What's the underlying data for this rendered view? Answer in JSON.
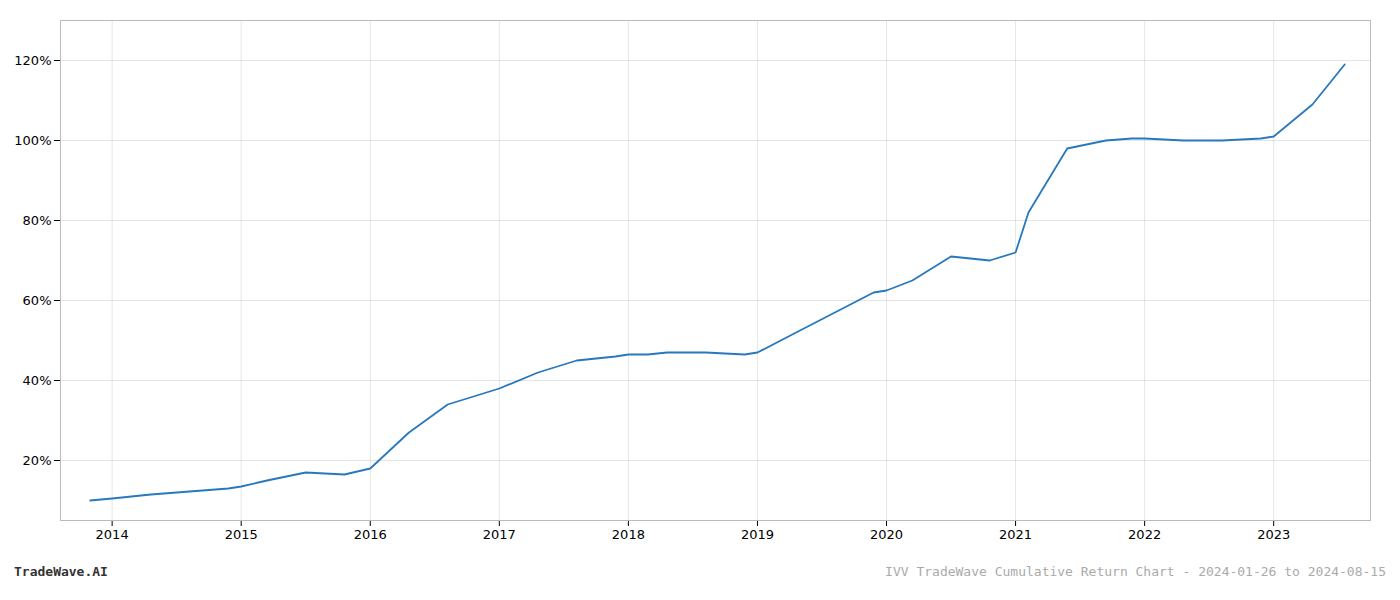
{
  "chart_data": {
    "type": "line",
    "annotations": [
      "TradeWave.AI",
      "IVV TradeWave Cumulative Return Chart - 2024-01-26 to 2024-08-15"
    ],
    "x": [
      2013.83,
      2014.0,
      2014.15,
      2014.3,
      2014.5,
      2014.7,
      2014.9,
      2015.0,
      2015.2,
      2015.5,
      2015.8,
      2016.0,
      2016.3,
      2016.6,
      2016.9,
      2017.0,
      2017.3,
      2017.6,
      2017.9,
      2018.0,
      2018.15,
      2018.3,
      2018.6,
      2018.9,
      2019.0,
      2019.3,
      2019.6,
      2019.9,
      2020.0,
      2020.2,
      2020.5,
      2020.8,
      2021.0,
      2021.1,
      2021.4,
      2021.7,
      2021.9,
      2022.0,
      2022.3,
      2022.6,
      2022.9,
      2023.0,
      2023.3,
      2023.55
    ],
    "values": [
      10,
      10.5,
      11,
      11.5,
      12,
      12.5,
      13,
      13.5,
      15,
      17,
      16.5,
      18,
      27,
      34,
      37,
      38,
      42,
      45,
      46,
      46.5,
      46.5,
      47,
      47,
      46.5,
      47,
      52,
      57,
      62,
      62.5,
      65,
      71,
      70,
      72,
      82,
      98,
      100,
      100.5,
      100.5,
      100,
      100,
      100.5,
      101,
      109,
      119
    ],
    "color": "#2878be",
    "xlim": [
      2013.6,
      2023.75
    ],
    "xticks": [
      2014,
      2015,
      2016,
      2017,
      2018,
      2019,
      2020,
      2021,
      2022,
      2023
    ],
    "ylim": [
      5,
      130
    ],
    "yticks": [
      {
        "value": 20,
        "label": "20%"
      },
      {
        "value": 40,
        "label": "40%"
      },
      {
        "value": 60,
        "label": "60%"
      },
      {
        "value": 80,
        "label": "80%"
      },
      {
        "value": 100,
        "label": "100%"
      },
      {
        "value": 120,
        "label": "120%"
      }
    ],
    "grid": true
  }
}
